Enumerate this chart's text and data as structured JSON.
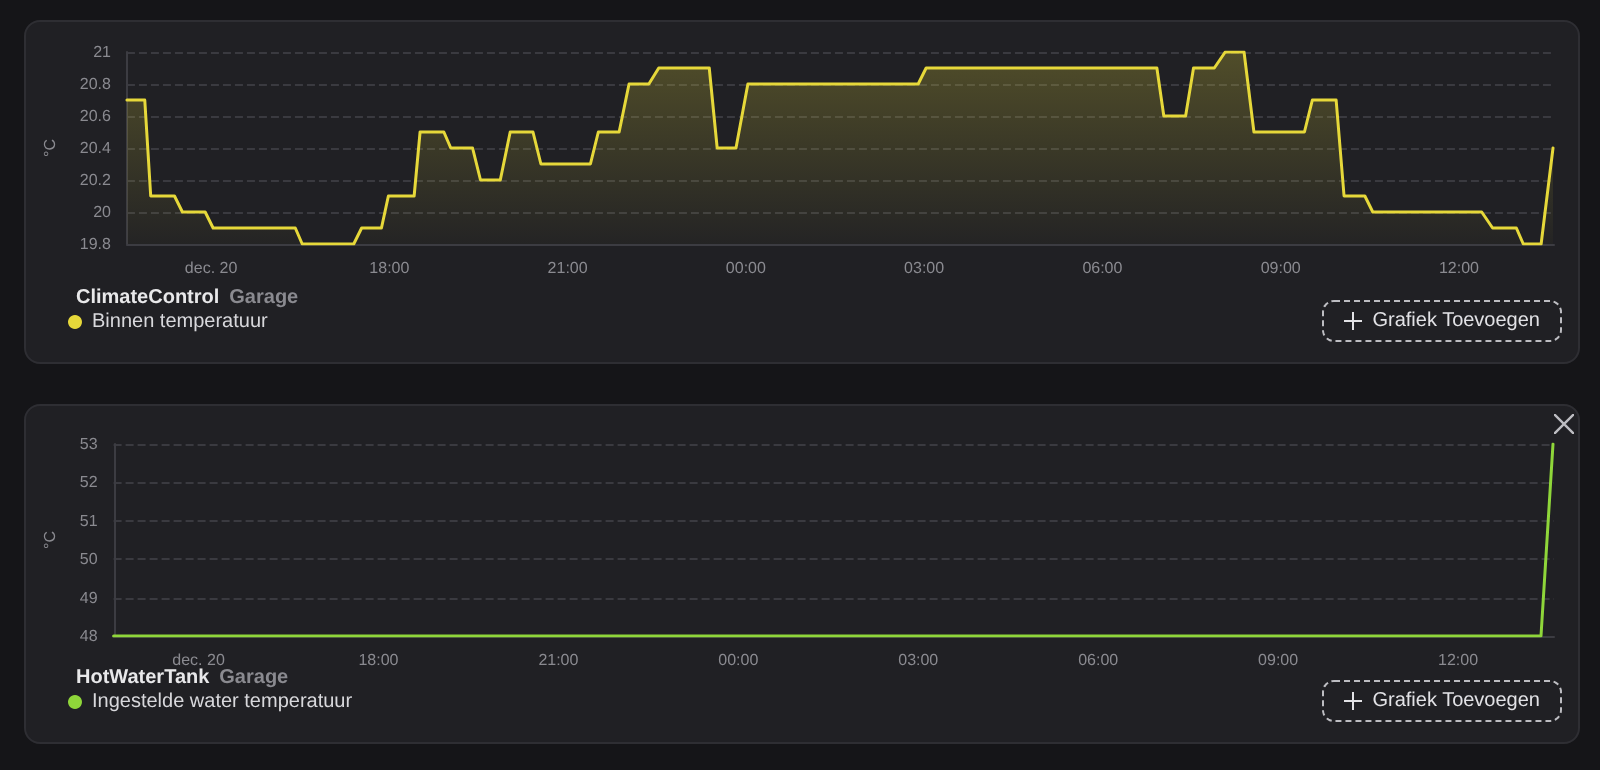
{
  "chart_data": [
    {
      "type": "area",
      "title": "ClimateControl",
      "subtitle": "Garage",
      "ylabel": "°C",
      "x": [
        "--12-20T13:35",
        "--12-20T13:53",
        "--12-20T13:59",
        "--12-20T14:23",
        "--12-20T14:31",
        "--12-20T14:54",
        "--12-20T15:02",
        "--12-20T16:25",
        "--12-20T16:32",
        "--12-20T17:24",
        "--12-20T17:32",
        "--12-20T17:52",
        "--12-20T17:59",
        "--12-20T18:25",
        "--12-20T18:31",
        "--12-20T18:55",
        "--12-20T19:02",
        "--12-20T19:24",
        "--12-20T19:32",
        "--12-20T19:52",
        "--12-20T20:02",
        "--12-20T20:25",
        "--12-20T20:33",
        "--12-20T21:23",
        "--12-20T21:31",
        "--12-20T21:52",
        "--12-20T22:02",
        "--12-20T22:22",
        "--12-20T22:32",
        "--12-20T23:23",
        "--12-20T23:31",
        "--12-20T23:50",
        "--12-21T00:02",
        "--12-21T02:54",
        "--12-21T03:02",
        "--12-21T06:55",
        "--12-21T07:02",
        "--12-21T07:24",
        "--12-21T07:32",
        "--12-21T07:53",
        "--12-21T08:04",
        "--12-21T08:23",
        "--12-21T08:33",
        "--12-21T09:24",
        "--12-21T09:32",
        "--12-21T09:56",
        "--12-21T10:04",
        "--12-21T10:25",
        "--12-21T10:33",
        "--12-21T12:23",
        "--12-21T12:34",
        "--12-21T12:58",
        "--12-21T13:05",
        "--12-21T13:23",
        "--12-21T13:35"
      ],
      "series": [
        {
          "name": "Binnen temperatuur",
          "color": "#e6d83a",
          "values": [
            20.7,
            20.7,
            20.1,
            20.1,
            20.0,
            20.0,
            19.9,
            19.9,
            19.8,
            19.8,
            19.9,
            19.9,
            20.1,
            20.1,
            20.5,
            20.5,
            20.4,
            20.4,
            20.2,
            20.2,
            20.5,
            20.5,
            20.3,
            20.3,
            20.5,
            20.5,
            20.8,
            20.8,
            20.9,
            20.9,
            20.4,
            20.4,
            20.8,
            20.8,
            20.9,
            20.9,
            20.6,
            20.6,
            20.9,
            20.9,
            21.0,
            21.0,
            20.5,
            20.5,
            20.7,
            20.7,
            20.1,
            20.1,
            20.0,
            20.0,
            19.9,
            19.9,
            19.8,
            19.8,
            20.4
          ]
        }
      ],
      "xlim": [
        "--12-20T13:35",
        "--12-21T13:36"
      ],
      "xticks": [
        {
          "value": "--12-20T15:00",
          "label": "dec. 20"
        },
        {
          "value": "--12-20T18:00",
          "label": "18:00"
        },
        {
          "value": "--12-20T21:00",
          "label": "21:00"
        },
        {
          "value": "--12-21T00:00",
          "label": "00:00"
        },
        {
          "value": "--12-21T03:00",
          "label": "03:00"
        },
        {
          "value": "--12-21T06:00",
          "label": "06:00"
        },
        {
          "value": "--12-21T09:00",
          "label": "09:00"
        },
        {
          "value": "--12-21T12:00",
          "label": "12:00"
        }
      ],
      "ylim": [
        19.8,
        21
      ],
      "yticks": [
        19.8,
        20,
        20.2,
        20.4,
        20.6,
        20.8,
        21
      ],
      "grid": "y",
      "legend": "bottom left",
      "marker": "none",
      "line_style": "solid",
      "annotations": [
        "Grafiek Toevoegen"
      ]
    },
    {
      "type": "line",
      "title": "HotWaterTank",
      "subtitle": "Garage",
      "ylabel": "°C",
      "x": [
        "--12-20T13:35",
        "--12-21T13:23",
        "--12-21T13:35"
      ],
      "series": [
        {
          "name": "Ingestelde water temperatuur",
          "color": "#8fd63a",
          "values": [
            48,
            48,
            53
          ]
        }
      ],
      "xlim": [
        "--12-20T13:35",
        "--12-21T13:36"
      ],
      "xticks": [
        {
          "value": "--12-20T15:00",
          "label": "dec. 20"
        },
        {
          "value": "--12-20T18:00",
          "label": "18:00"
        },
        {
          "value": "--12-20T21:00",
          "label": "21:00"
        },
        {
          "value": "--12-21T00:00",
          "label": "00:00"
        },
        {
          "value": "--12-21T03:00",
          "label": "03:00"
        },
        {
          "value": "--12-21T06:00",
          "label": "06:00"
        },
        {
          "value": "--12-21T09:00",
          "label": "09:00"
        },
        {
          "value": "--12-21T12:00",
          "label": "12:00"
        }
      ],
      "ylim": [
        48,
        53
      ],
      "yticks": [
        48,
        49,
        50,
        51,
        52,
        53
      ],
      "grid": "y",
      "legend": "bottom left",
      "marker": "none",
      "line_style": "solid",
      "annotations": [
        "Grafiek Toevoegen"
      ]
    }
  ]
}
